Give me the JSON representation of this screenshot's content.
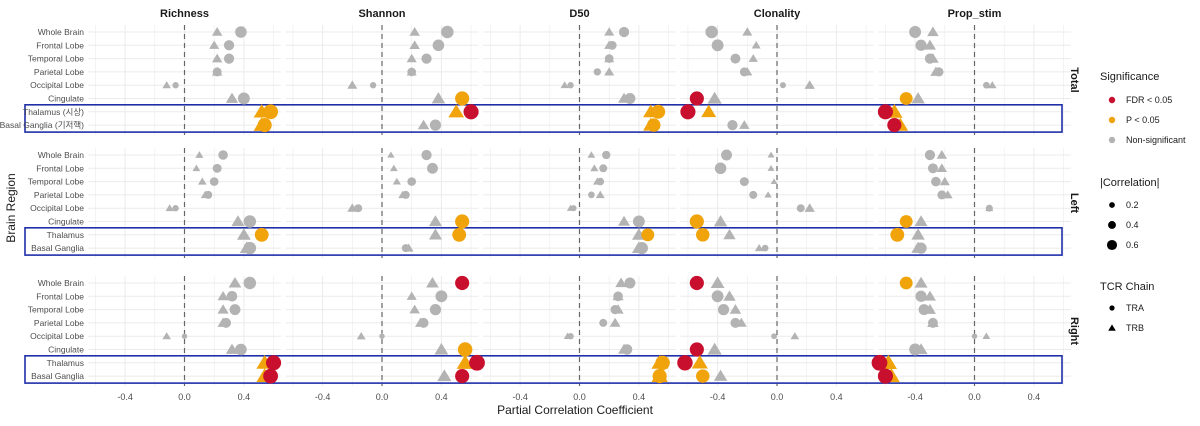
{
  "chart_data": {
    "type": "scatter",
    "metrics": [
      "Richness",
      "Shannon",
      "D50",
      "Clonality",
      "Prop_stim"
    ],
    "groups": [
      {
        "name": "Total",
        "regions": [
          "Whole Brain",
          "Frontal Lobe",
          "Temporal Lobe",
          "Parietal Lobe",
          "Occipital Lobe",
          "Cingulate",
          "Thalamus (시상)",
          "Basal Ganglia (기저핵)"
        ],
        "highlight": [
          6,
          7
        ]
      },
      {
        "name": "Left",
        "regions": [
          "Whole Brain",
          "Frontal Lobe",
          "Temporal Lobe",
          "Parietal Lobe",
          "Occipital Lobe",
          "Cingulate",
          "Thalamus",
          "Basal Ganglia"
        ],
        "highlight": [
          6,
          7
        ]
      },
      {
        "name": "Right",
        "regions": [
          "Whole Brain",
          "Frontal Lobe",
          "Temporal Lobe",
          "Parietal Lobe",
          "Occipital Lobe",
          "Cingulate",
          "Thalamus",
          "Basal Ganglia"
        ],
        "highlight": [
          6,
          7
        ]
      }
    ],
    "xlim": [
      -0.65,
      0.65
    ],
    "xticks": [
      -0.4,
      0.0,
      0.4
    ],
    "xtick_labels": [
      "-0.4",
      "0.0",
      "0.4"
    ],
    "xlabel": "Partial Correlation Coefficient",
    "ylabel": "Brain Region",
    "grid": true,
    "reference_line": 0,
    "colors": {
      "fdr": "#c8102e",
      "p": "#f0a30a",
      "ns": "#b3b3b3",
      "highlight_box": "#1f2fa8",
      "grid": "#ebebeb"
    },
    "legend": {
      "position": "right",
      "significance": {
        "title": "Significance",
        "items": [
          {
            "label": "FDR < 0.05",
            "key": "fdr"
          },
          {
            "label": "P < 0.05",
            "key": "p"
          },
          {
            "label": "Non-significant",
            "key": "ns"
          }
        ]
      },
      "magnitude": {
        "title": "|Correlation|",
        "items": [
          {
            "label": "0.2",
            "value": 0.2
          },
          {
            "label": "0.4",
            "value": 0.4
          },
          {
            "label": "0.6",
            "value": 0.6
          }
        ]
      },
      "chain": {
        "title": "TCR Chain",
        "items": [
          {
            "label": "TRA",
            "shape": "circle"
          },
          {
            "label": "TRB",
            "shape": "triangle"
          }
        ]
      }
    },
    "points": {
      "Total": {
        "Richness": [
          [
            0.38,
            "ns",
            0.22,
            "ns"
          ],
          [
            0.3,
            "ns",
            0.2,
            "ns"
          ],
          [
            0.3,
            "ns",
            0.22,
            "ns"
          ],
          [
            0.22,
            "ns",
            0.22,
            "ns"
          ],
          [
            -0.06,
            "ns",
            -0.12,
            "ns"
          ],
          [
            0.4,
            "ns",
            0.32,
            "ns"
          ],
          [
            0.58,
            "p",
            0.52,
            "p"
          ],
          [
            0.54,
            "p",
            0.52,
            "p"
          ]
        ],
        "Shannon": [
          [
            0.44,
            "ns",
            0.22,
            "ns"
          ],
          [
            0.38,
            "ns",
            0.22,
            "ns"
          ],
          [
            0.3,
            "ns",
            0.2,
            "ns"
          ],
          [
            0.2,
            "ns",
            0.2,
            "ns"
          ],
          [
            -0.06,
            "ns",
            -0.2,
            "ns"
          ],
          [
            0.54,
            "p",
            0.38,
            "ns"
          ],
          [
            0.6,
            "fdr",
            0.5,
            "p"
          ],
          [
            0.36,
            "ns",
            0.28,
            "ns"
          ]
        ],
        "D50": [
          [
            0.3,
            "ns",
            0.2,
            "ns"
          ],
          [
            0.22,
            "ns",
            0.2,
            "ns"
          ],
          [
            0.2,
            "ns",
            0.2,
            "ns"
          ],
          [
            0.12,
            "ns",
            0.2,
            "ns"
          ],
          [
            -0.06,
            "ns",
            -0.1,
            "ns"
          ],
          [
            0.34,
            "ns",
            0.3,
            "ns"
          ],
          [
            0.53,
            "p",
            0.48,
            "p"
          ],
          [
            0.5,
            "p",
            0.48,
            "p"
          ]
        ],
        "Clonality": [
          [
            -0.44,
            "ns",
            -0.2,
            "ns"
          ],
          [
            -0.4,
            "ns",
            -0.14,
            "ns"
          ],
          [
            -0.28,
            "ns",
            -0.16,
            "ns"
          ],
          [
            -0.22,
            "ns",
            -0.2,
            "ns"
          ],
          [
            0.04,
            "ns",
            0.22,
            "ns"
          ],
          [
            -0.54,
            "fdr",
            -0.42,
            "ns"
          ],
          [
            -0.6,
            "fdr",
            -0.46,
            "p"
          ],
          [
            -0.3,
            "ns",
            -0.22,
            "ns"
          ]
        ],
        "Prop_stim": [
          [
            -0.4,
            "ns",
            -0.28,
            "ns"
          ],
          [
            -0.36,
            "ns",
            -0.3,
            "ns"
          ],
          [
            -0.3,
            "ns",
            -0.28,
            "ns"
          ],
          [
            -0.24,
            "ns",
            -0.26,
            "ns"
          ],
          [
            0.08,
            "ns",
            0.12,
            "ns"
          ],
          [
            -0.46,
            "p",
            -0.38,
            "ns"
          ],
          [
            -0.6,
            "fdr",
            -0.54,
            "p"
          ],
          [
            -0.54,
            "fdr",
            -0.5,
            "p"
          ]
        ]
      },
      "Left": {
        "Richness": [
          [
            0.26,
            "ns",
            0.1,
            "ns"
          ],
          [
            0.22,
            "ns",
            0.08,
            "ns"
          ],
          [
            0.2,
            "ns",
            0.12,
            "ns"
          ],
          [
            0.16,
            "ns",
            0.14,
            "ns"
          ],
          [
            -0.06,
            "ns",
            -0.1,
            "ns"
          ],
          [
            0.44,
            "ns",
            0.36,
            "ns"
          ],
          [
            0.52,
            "p",
            0.4,
            "ns"
          ],
          [
            0.44,
            "ns",
            0.42,
            "ns"
          ]
        ],
        "Shannon": [
          [
            0.3,
            "ns",
            0.06,
            "ns"
          ],
          [
            0.34,
            "ns",
            0.08,
            "ns"
          ],
          [
            0.2,
            "ns",
            0.1,
            "ns"
          ],
          [
            0.16,
            "ns",
            0.14,
            "ns"
          ],
          [
            -0.16,
            "ns",
            -0.2,
            "ns"
          ],
          [
            0.54,
            "p",
            0.36,
            "ns"
          ],
          [
            0.52,
            "p",
            0.36,
            "ns"
          ],
          [
            0.16,
            "ns",
            0.18,
            "ns"
          ]
        ],
        "D50": [
          [
            0.18,
            "ns",
            0.08,
            "ns"
          ],
          [
            0.16,
            "ns",
            0.1,
            "ns"
          ],
          [
            0.14,
            "ns",
            0.12,
            "ns"
          ],
          [
            0.08,
            "ns",
            0.14,
            "ns"
          ],
          [
            -0.04,
            "ns",
            -0.06,
            "ns"
          ],
          [
            0.4,
            "ns",
            0.3,
            "ns"
          ],
          [
            0.46,
            "p",
            0.4,
            "ns"
          ],
          [
            0.42,
            "ns",
            0.4,
            "ns"
          ]
        ],
        "Clonality": [
          [
            -0.34,
            "ns",
            -0.04,
            "ns"
          ],
          [
            -0.38,
            "ns",
            -0.04,
            "ns"
          ],
          [
            -0.22,
            "ns",
            -0.02,
            "ns"
          ],
          [
            -0.16,
            "ns",
            -0.06,
            "ns"
          ],
          [
            0.16,
            "ns",
            0.22,
            "ns"
          ],
          [
            -0.54,
            "p",
            -0.38,
            "ns"
          ],
          [
            -0.5,
            "p",
            -0.32,
            "ns"
          ],
          [
            -0.08,
            "ns",
            -0.12,
            "ns"
          ]
        ],
        "Prop_stim": [
          [
            -0.3,
            "ns",
            -0.22,
            "ns"
          ],
          [
            -0.28,
            "ns",
            -0.22,
            "ns"
          ],
          [
            -0.26,
            "ns",
            -0.2,
            "ns"
          ],
          [
            -0.22,
            "ns",
            -0.18,
            "ns"
          ],
          [
            0.1,
            "ns",
            0.1,
            "ns"
          ],
          [
            -0.46,
            "p",
            -0.36,
            "ns"
          ],
          [
            -0.52,
            "p",
            -0.38,
            "ns"
          ],
          [
            -0.36,
            "ns",
            -0.38,
            "ns"
          ]
        ]
      },
      "Right": {
        "Richness": [
          [
            0.44,
            "ns",
            0.34,
            "ns"
          ],
          [
            0.32,
            "ns",
            0.26,
            "ns"
          ],
          [
            0.34,
            "ns",
            0.26,
            "ns"
          ],
          [
            0.28,
            "ns",
            0.26,
            "ns"
          ],
          [
            0.0,
            "ns",
            -0.12,
            "ns"
          ],
          [
            0.38,
            "ns",
            0.32,
            "ns"
          ],
          [
            0.6,
            "fdr",
            0.54,
            "p"
          ],
          [
            0.58,
            "fdr",
            0.54,
            "p"
          ]
        ],
        "Shannon": [
          [
            0.54,
            "fdr",
            0.34,
            "ns"
          ],
          [
            0.4,
            "ns",
            0.2,
            "ns"
          ],
          [
            0.36,
            "ns",
            0.22,
            "ns"
          ],
          [
            0.28,
            "ns",
            0.26,
            "ns"
          ],
          [
            0.0,
            "ns",
            -0.14,
            "ns"
          ],
          [
            0.56,
            "p",
            0.4,
            "ns"
          ],
          [
            0.64,
            "fdr",
            0.56,
            "p"
          ],
          [
            0.54,
            "fdr",
            0.42,
            "ns"
          ]
        ],
        "D50": [
          [
            0.34,
            "ns",
            0.28,
            "ns"
          ],
          [
            0.26,
            "ns",
            0.26,
            "ns"
          ],
          [
            0.24,
            "ns",
            0.26,
            "ns"
          ],
          [
            0.16,
            "ns",
            0.24,
            "ns"
          ],
          [
            -0.06,
            "ns",
            -0.08,
            "ns"
          ],
          [
            0.32,
            "ns",
            0.3,
            "ns"
          ],
          [
            0.56,
            "p",
            0.54,
            "p"
          ],
          [
            0.54,
            "p",
            0.54,
            "p"
          ]
        ],
        "Clonality": [
          [
            -0.54,
            "fdr",
            -0.4,
            "ns"
          ],
          [
            -0.4,
            "ns",
            -0.32,
            "ns"
          ],
          [
            -0.36,
            "ns",
            -0.28,
            "ns"
          ],
          [
            -0.28,
            "ns",
            -0.24,
            "ns"
          ],
          [
            -0.02,
            "ns",
            0.12,
            "ns"
          ],
          [
            -0.54,
            "fdr",
            -0.42,
            "ns"
          ],
          [
            -0.62,
            "fdr",
            -0.52,
            "p"
          ],
          [
            -0.5,
            "p",
            -0.38,
            "ns"
          ]
        ],
        "Prop_stim": [
          [
            -0.46,
            "p",
            -0.36,
            "ns"
          ],
          [
            -0.36,
            "ns",
            -0.3,
            "ns"
          ],
          [
            -0.34,
            "ns",
            -0.3,
            "ns"
          ],
          [
            -0.28,
            "ns",
            -0.28,
            "ns"
          ],
          [
            0.0,
            "ns",
            0.08,
            "ns"
          ],
          [
            -0.4,
            "ns",
            -0.36,
            "ns"
          ],
          [
            -0.64,
            "fdr",
            -0.58,
            "p"
          ],
          [
            -0.6,
            "fdr",
            -0.56,
            "p"
          ]
        ]
      }
    }
  }
}
